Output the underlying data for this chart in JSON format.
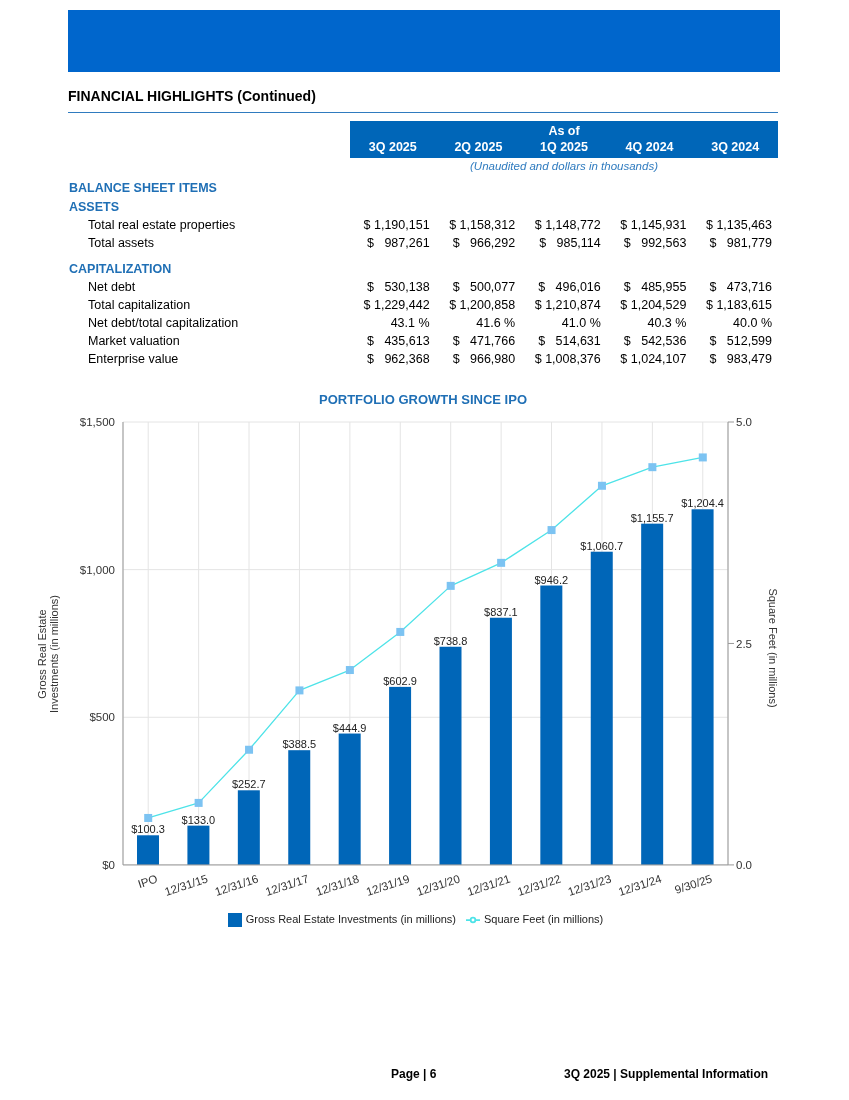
{
  "chart_data": [
    {
      "type": "other",
      "title": "FINANCIAL HIGHLIGHTS (Continued)",
      "subtitle": "As of",
      "categories": [
        "3Q 2025",
        "2Q 2025",
        "1Q 2025",
        "4Q 2024",
        "3Q 2024"
      ],
      "y_categories": [
        "BALANCE SHEET ITEMS",
        "ASSETS",
        "Total real estate properties",
        "Total assets",
        "CAPITALIZATION",
        "Net debt",
        "Total capitalization",
        "Net debt/total capitalization",
        "Market valuation",
        "Enterprise value"
      ],
      "cell_labels": [
        [
          null,
          null,
          null,
          null,
          null
        ],
        [
          null,
          null,
          null,
          null,
          null
        ],
        [
          "$ 1,190,151",
          "$ 1,158,312",
          "$ 1,148,772",
          "$ 1,145,931",
          "$ 1,135,463"
        ],
        [
          "$   987,261",
          "$   966,292",
          "$   985,114",
          "$   992,563",
          "$   981,779"
        ],
        [
          null,
          null,
          null,
          null,
          null
        ],
        [
          "$   530,138",
          "$   500,077",
          "$   496,016",
          "$   485,955",
          "$   473,716"
        ],
        [
          "$ 1,229,442",
          "$ 1,200,858",
          "$ 1,210,874",
          "$ 1,204,529",
          "$ 1,183,615"
        ],
        [
          "43.1 %",
          "41.6 %",
          "41.0 %",
          "40.3 %",
          "40.0 %"
        ],
        [
          "$   435,613",
          "$   471,766",
          "$   514,631",
          "$   542,536",
          "$   512,599"
        ],
        [
          "$   962,368",
          "$   966,980",
          "$ 1,008,376",
          "$ 1,024,107",
          "$   983,479"
        ]
      ],
      "annotations": [
        "(Unaudited and dollars in thousands)",
        "Page | 6",
        "3Q 2025 | Supplemental Information"
      ]
    },
    {
      "type": "bar",
      "title": "PORTFOLIO GROWTH SINCE IPO",
      "ylabel": "Gross Real Estate Investments (in millions)",
      "y2label": "Square Feet (in millions)",
      "categories": [
        "IPO",
        "12/31/15",
        "12/31/16",
        "12/31/17",
        "12/31/18",
        "12/31/19",
        "12/31/20",
        "12/31/21",
        "12/31/22",
        "12/31/23",
        "12/31/24",
        "9/30/25"
      ],
      "series": [
        {
          "name": "Gross Real Estate Investments (in millions)",
          "type": "bar",
          "color": "#0066b8",
          "values": [
            100.3,
            133.0,
            252.7,
            388.5,
            444.9,
            602.9,
            738.8,
            837.1,
            946.2,
            1060.7,
            1155.7,
            1204.4
          ],
          "value_labels": [
            "$100.3",
            "$133.0",
            "$252.7",
            "$388.5",
            "$444.9",
            "$602.9",
            "$738.8",
            "$837.1",
            "$946.2",
            "$1,060.7",
            "$1,155.7",
            "$1,204.4"
          ]
        },
        {
          "name": "Square Feet (in millions)",
          "type": "line",
          "axis": "y2",
          "color": "#7cc3f2",
          "values": [
            0.53,
            0.7,
            1.3,
            1.97,
            2.2,
            2.63,
            3.15,
            3.41,
            3.78,
            4.28,
            4.49,
            4.6
          ]
        }
      ],
      "ylim": [
        0,
        1500
      ],
      "yticks": [
        {
          "value": 0,
          "label": "$0"
        },
        {
          "value": 500,
          "label": "$500"
        },
        {
          "value": 1000,
          "label": "$1,000"
        },
        {
          "value": 1500,
          "label": "$1,500"
        }
      ],
      "y2lim": [
        0,
        5
      ],
      "y2ticks": [
        {
          "value": 0,
          "label": "0.0"
        },
        {
          "value": 2.5,
          "label": "2.5"
        },
        {
          "value": 5,
          "label": "5.0"
        }
      ],
      "grid": true,
      "legend": "bottom",
      "marker": "square"
    }
  ]
}
